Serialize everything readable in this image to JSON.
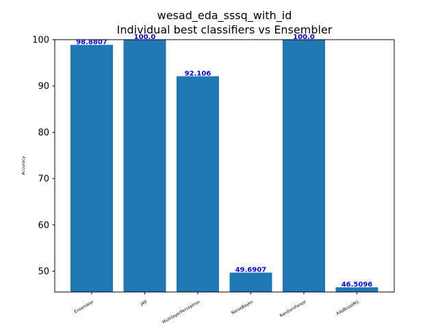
{
  "chart_data": {
    "type": "bar",
    "title": "wesad_eda_sssq_with_id",
    "subtitle": "Individual best classifiers vs Ensembler",
    "xlabel": "",
    "ylabel": "Accuracy",
    "categories": [
      "Ensembler",
      "J48",
      "MultilayerPerceptron",
      "NaiveBayes",
      "RandomForest",
      "AdaBoostM1"
    ],
    "values": [
      98.8807,
      100.0,
      92.106,
      49.6907,
      100.0,
      46.5096
    ],
    "value_labels": [
      "98.8807",
      "100.0",
      "92.106",
      "49.6907",
      "100.0",
      "46.5096"
    ],
    "ylim": [
      45.5,
      100
    ],
    "yticks": [
      50,
      60,
      70,
      80,
      90,
      100
    ],
    "ytick_labels": [
      "50",
      "60",
      "70",
      "80",
      "90",
      "100"
    ],
    "grid": false,
    "legend": "none",
    "colors": {
      "bar": "#1f77b4",
      "value_label": "#0000ff",
      "axis": "#000000",
      "background": "#ffffff"
    }
  }
}
